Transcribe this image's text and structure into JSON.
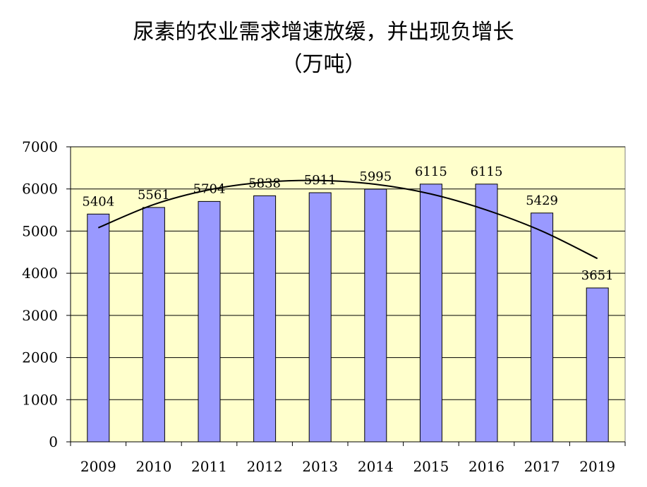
{
  "chart_data": {
    "type": "bar",
    "title": "尿素的农业需求增速放缓，并出现负增长",
    "subtitle": "（万吨）",
    "categories": [
      "2009",
      "2010",
      "2011",
      "2012",
      "2013",
      "2014",
      "2015",
      "2016",
      "2017",
      "2019"
    ],
    "values": [
      5404,
      5561,
      5704,
      5838,
      5911,
      5995,
      6115,
      6115,
      5429,
      3651
    ],
    "ylim": [
      0,
      7000
    ],
    "yticks": [
      0,
      1000,
      2000,
      3000,
      4000,
      5000,
      6000,
      7000
    ],
    "grid": true,
    "trendline": "polynomial",
    "trend_values": [
      5080,
      5630,
      5980,
      6160,
      6200,
      6110,
      5880,
      5500,
      5000,
      4350
    ],
    "colors": {
      "bar": "#9999ff",
      "plot_bg": "#ffffcc",
      "trend": "#000000"
    }
  }
}
